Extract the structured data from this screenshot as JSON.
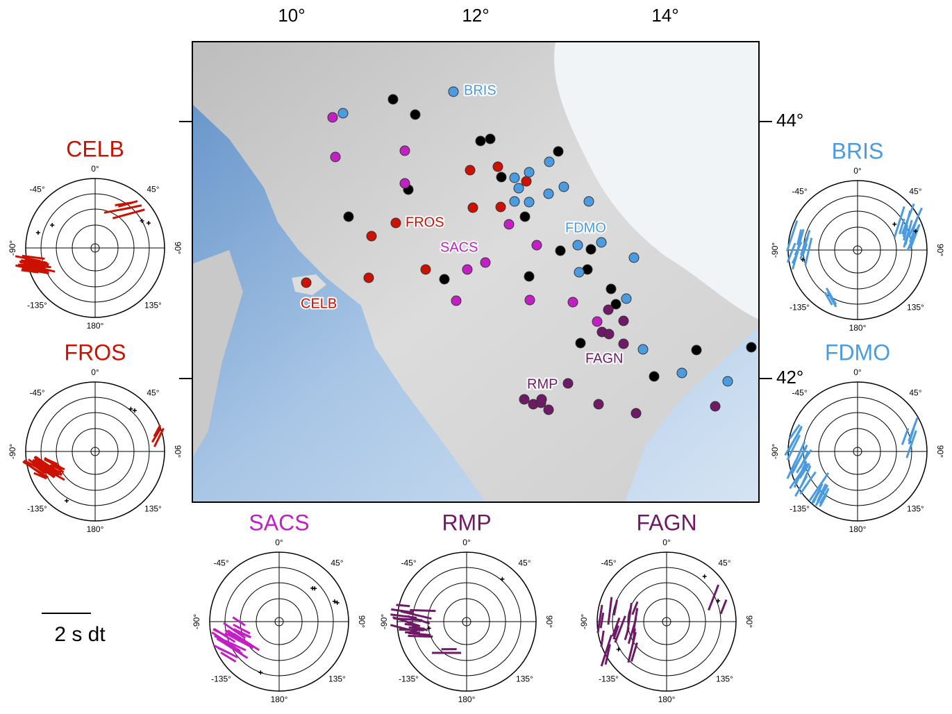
{
  "map": {
    "x_labels": [
      "10°",
      "12°",
      "14°"
    ],
    "y_labels": [
      "44°",
      "42°"
    ],
    "stations": [
      {
        "name": "BRIS",
        "color": "#4a9be0"
      },
      {
        "name": "FROS",
        "color": "#cc1100"
      },
      {
        "name": "SACS",
        "color": "#c21fc4"
      },
      {
        "name": "CELB",
        "color": "#cc1100"
      },
      {
        "name": "FDMO",
        "color": "#4a9be0"
      },
      {
        "name": "FAGN",
        "color": "#6e1a66"
      },
      {
        "name": "RMP",
        "color": "#6e1a66"
      }
    ]
  },
  "angle_labels": [
    "0°",
    "45°",
    "90°",
    "135°",
    "180°",
    "-135°",
    "-90°",
    "-45°"
  ],
  "polar_plots": [
    {
      "name": "CELB",
      "color": "#cc1100"
    },
    {
      "name": "FROS",
      "color": "#cc1100"
    },
    {
      "name": "BRIS",
      "color": "#4a9be0"
    },
    {
      "name": "FDMO",
      "color": "#4a9be0"
    },
    {
      "name": "SACS",
      "color": "#c21fc4"
    },
    {
      "name": "RMP",
      "color": "#6e1a66"
    },
    {
      "name": "FAGN",
      "color": "#6e1a66"
    }
  ],
  "scale_label": "2 s dt"
}
